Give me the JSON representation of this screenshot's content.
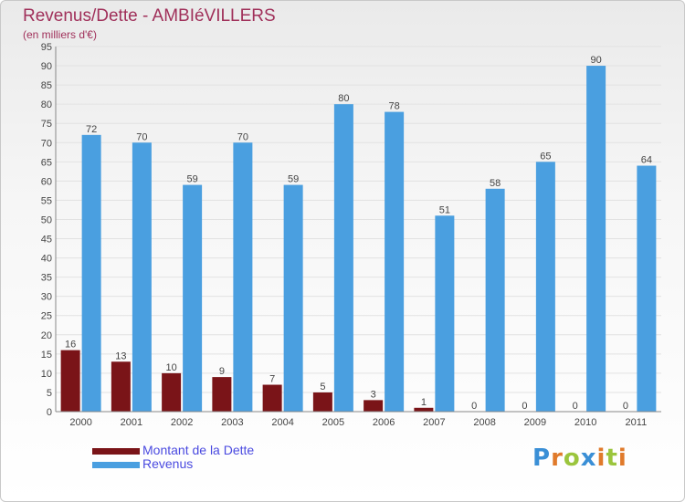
{
  "chart_data": {
    "type": "bar",
    "title": "Revenus/Dette - AMBIéVILLERS",
    "subtitle": "(en milliers d'€)",
    "categories": [
      "2000",
      "2001",
      "2002",
      "2003",
      "2004",
      "2005",
      "2006",
      "2007",
      "2008",
      "2009",
      "2010",
      "2011"
    ],
    "series": [
      {
        "name": "Montant de la Dette",
        "color": "#7a1418",
        "values": [
          16,
          13,
          10,
          9,
          7,
          5,
          3,
          1,
          0,
          0,
          0,
          0
        ]
      },
      {
        "name": "Revenus",
        "color": "#4a9fe0",
        "values": [
          72,
          70,
          59,
          70,
          59,
          80,
          78,
          51,
          58,
          65,
          90,
          64
        ]
      }
    ],
    "ylim": [
      0,
      95
    ],
    "yticks": [
      0,
      5,
      10,
      15,
      20,
      25,
      30,
      35,
      40,
      45,
      50,
      55,
      60,
      65,
      70,
      75,
      80,
      85,
      90,
      95
    ],
    "grid": true,
    "legend_position": "bottom-left"
  },
  "logo": {
    "text": "Proxiti"
  }
}
